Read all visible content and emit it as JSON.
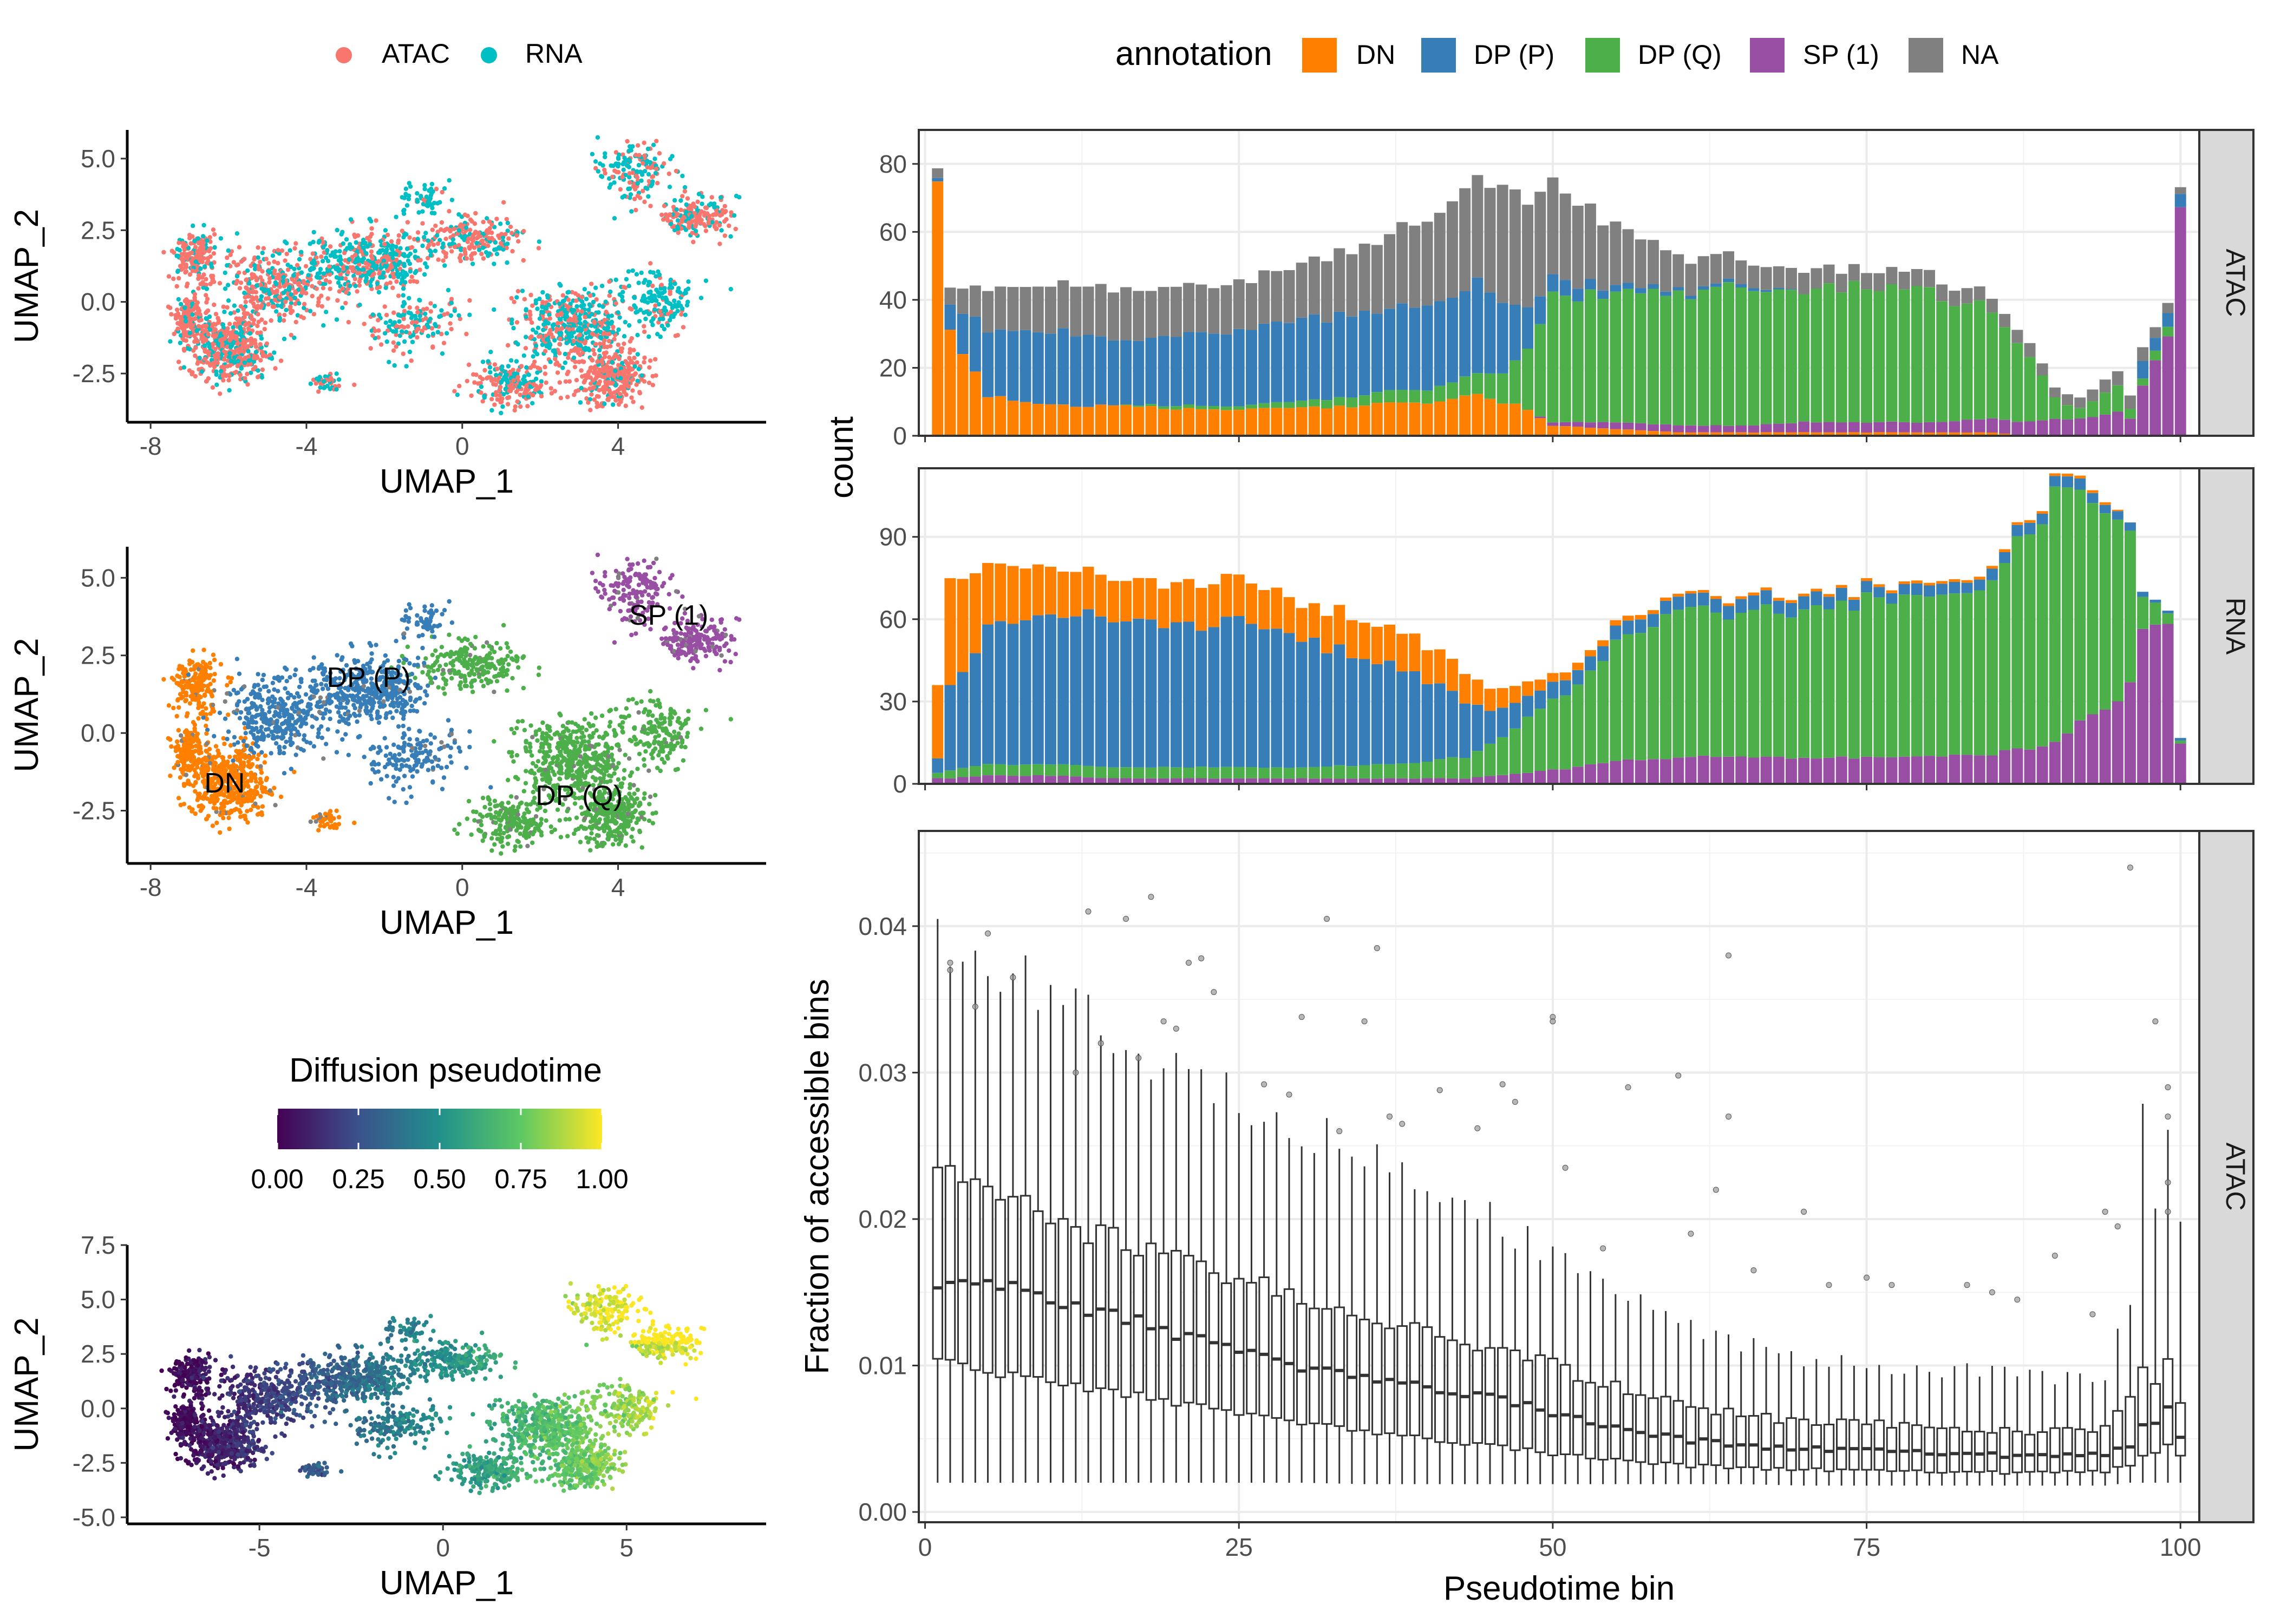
{
  "colors": {
    "atac": "#F8766D",
    "rna": "#00BFC4",
    "DN": "#FF7F00",
    "DP (P)": "#377EB8",
    "DP (Q)": "#4DAF4A",
    "SP (1)": "#984EA3",
    "NA": "#808080",
    "viridis": [
      "#440154",
      "#3B528B",
      "#21908C",
      "#5DC863",
      "#FDE725"
    ]
  },
  "legend_top_left": {
    "items": [
      "ATAC",
      "RNA"
    ]
  },
  "legend_top_right": {
    "title": "annotation",
    "items": [
      "DN",
      "DP (P)",
      "DP (Q)",
      "SP (1)",
      "NA"
    ]
  },
  "colorbar": {
    "title": "Diffusion pseudotime",
    "ticks": [
      "0.00",
      "0.25",
      "0.50",
      "0.75",
      "1.00"
    ]
  },
  "chart_data": [
    {
      "type": "scatter",
      "panel": "umap-modality",
      "xlabel": "UMAP_1",
      "ylabel": "UMAP_2",
      "xlim": [
        -8.6,
        7.8
      ],
      "ylim": [
        -4.2,
        6.0
      ],
      "xticks": [
        "-8",
        "-4",
        "0",
        "4"
      ],
      "xtick_values": [
        -8,
        -4,
        0,
        4
      ],
      "yticks": [
        "-2.5",
        "0.0",
        "2.5",
        "5.0"
      ],
      "ytick_values": [
        -2.5,
        0.0,
        2.5,
        5.0
      ],
      "color_by": "modality",
      "series": [
        "ATAC",
        "RNA"
      ]
    },
    {
      "type": "scatter",
      "panel": "umap-annotation",
      "xlabel": "UMAP_1",
      "ylabel": "UMAP_2",
      "xlim": [
        -8.6,
        7.8
      ],
      "ylim": [
        -4.2,
        6.0
      ],
      "xticks": [
        "-8",
        "-4",
        "0",
        "4"
      ],
      "xtick_values": [
        -8,
        -4,
        0,
        4
      ],
      "yticks": [
        "-2.5",
        "0.0",
        "2.5",
        "5.0"
      ],
      "ytick_values": [
        -2.5,
        0.0,
        2.5,
        5.0
      ],
      "color_by": "annotation",
      "cluster_labels": [
        {
          "text": "DN",
          "x": -6.1,
          "y": -1.6
        },
        {
          "text": "DP (P)",
          "x": -2.4,
          "y": 1.8
        },
        {
          "text": "DP (Q)",
          "x": 3.0,
          "y": -2.0
        },
        {
          "text": "SP (1)",
          "x": 5.3,
          "y": 3.8
        }
      ]
    },
    {
      "type": "scatter",
      "panel": "umap-pseudotime",
      "xlabel": "UMAP_1",
      "ylabel": "UMAP_2",
      "xlim": [
        -8.6,
        8.8
      ],
      "ylim": [
        -5.3,
        7.5
      ],
      "xticks": [
        "-5",
        "0",
        "5"
      ],
      "xtick_values": [
        -5,
        0,
        5
      ],
      "yticks": [
        "-5.0",
        "-2.5",
        "0.0",
        "2.5",
        "5.0",
        "7.5"
      ],
      "ytick_values": [
        -5.0,
        -2.5,
        0.0,
        2.5,
        5.0,
        7.5
      ],
      "color_by": "Diffusion pseudotime"
    },
    {
      "type": "bar",
      "panel": "count-atac",
      "facet": "ATAC",
      "ylabel": "count",
      "ylim": [
        0,
        90
      ],
      "yticks": [
        "0",
        "20",
        "40",
        "60",
        "80"
      ],
      "ytick_values": [
        0,
        20,
        40,
        60,
        80
      ],
      "stacked": true,
      "anchors": {
        "x": [
          1,
          2,
          5,
          10,
          15,
          20,
          25,
          30,
          35,
          40,
          42,
          44,
          46,
          48,
          50,
          55,
          60,
          65,
          70,
          75,
          80,
          85,
          88,
          90,
          92,
          95,
          96,
          97,
          98,
          99,
          100
        ],
        "NA": [
          3,
          5,
          12,
          14,
          15,
          14,
          14,
          16,
          20,
          25,
          28,
          32,
          33,
          32,
          28,
          18,
          10,
          7,
          6,
          5,
          5,
          4,
          4,
          3,
          3,
          4,
          4,
          4,
          3,
          3,
          2
        ],
        "DP (P)": [
          1,
          7,
          20,
          22,
          20,
          20,
          22,
          24,
          24,
          25,
          26,
          27,
          22,
          12,
          5,
          2,
          1,
          1,
          0,
          0,
          0,
          0,
          0,
          0,
          0,
          0,
          0,
          5,
          4,
          4,
          4
        ],
        "DP (Q)": [
          0,
          0,
          0,
          0,
          0,
          1,
          1,
          2,
          3,
          4,
          5,
          6,
          9,
          18,
          37,
          38,
          38,
          42,
          38,
          40,
          38,
          32,
          20,
          6,
          3,
          8,
          3,
          2,
          3,
          3,
          0
        ],
        "SP (1)": [
          0,
          0,
          0,
          0,
          0,
          0,
          0,
          0,
          0,
          0,
          0,
          0,
          0,
          0,
          1,
          2,
          2,
          2,
          3,
          3,
          3,
          4,
          4,
          5,
          5,
          7,
          5,
          15,
          22,
          30,
          70
        ],
        "DN": [
          75,
          30,
          12,
          9,
          9,
          8,
          8,
          8,
          9,
          10,
          11,
          12,
          10,
          8,
          3,
          2,
          1,
          1,
          1,
          1,
          1,
          1,
          0,
          0,
          0,
          0,
          0,
          0,
          0,
          0,
          0
        ]
      }
    },
    {
      "type": "bar",
      "panel": "count-rna",
      "facet": "RNA",
      "ylim": [
        0,
        115
      ],
      "yticks": [
        "0",
        "30",
        "60",
        "90"
      ],
      "ytick_values": [
        0,
        30,
        60,
        90
      ],
      "stacked": true,
      "anchors": {
        "x": [
          1,
          2,
          5,
          10,
          15,
          20,
          25,
          30,
          35,
          40,
          43,
          45,
          48,
          50,
          55,
          60,
          65,
          70,
          75,
          80,
          85,
          88,
          90,
          92,
          94,
          96,
          97,
          98,
          99,
          100
        ],
        "SP (1)": [
          2,
          2,
          3,
          3,
          2,
          2,
          2,
          2,
          2,
          2,
          2,
          3,
          4,
          5,
          8,
          10,
          10,
          9,
          10,
          10,
          11,
          13,
          16,
          22,
          28,
          35,
          55,
          58,
          56,
          15
        ],
        "DP (Q)": [
          2,
          3,
          4,
          4,
          4,
          4,
          4,
          4,
          5,
          6,
          8,
          12,
          20,
          25,
          42,
          52,
          52,
          55,
          57,
          58,
          64,
          78,
          88,
          82,
          70,
          55,
          12,
          8,
          4,
          1
        ],
        "DP (P)": [
          5,
          30,
          50,
          55,
          54,
          53,
          52,
          46,
          40,
          30,
          20,
          12,
          8,
          6,
          5,
          5,
          5,
          5,
          4,
          4,
          4,
          4,
          4,
          4,
          3,
          3,
          2,
          1,
          1,
          1
        ],
        "DN": [
          28,
          40,
          23,
          17,
          15,
          15,
          16,
          13,
          14,
          13,
          11,
          8,
          5,
          3,
          2,
          1,
          1,
          1,
          1,
          1,
          1,
          1,
          1,
          1,
          1,
          0,
          0,
          0,
          0,
          0
        ]
      }
    },
    {
      "type": "box",
      "panel": "fraction-accessible",
      "facet": "ATAC",
      "xlabel": "Pseudotime bin",
      "ylabel": "Fraction of accessible bins",
      "xlim": [
        -0.5,
        101.5
      ],
      "ylim": [
        -0.0007,
        0.0465
      ],
      "xticks": [
        "0",
        "25",
        "50",
        "75",
        "100"
      ],
      "xtick_values": [
        0,
        25,
        50,
        75,
        100
      ],
      "yticks": [
        "0.00",
        "0.01",
        "0.02",
        "0.03",
        "0.04"
      ],
      "ytick_values": [
        0.0,
        0.01,
        0.02,
        0.03,
        0.04
      ],
      "anchors": {
        "x": [
          1,
          5,
          10,
          15,
          20,
          25,
          30,
          35,
          40,
          45,
          50,
          55,
          60,
          65,
          70,
          75,
          80,
          85,
          90,
          94,
          96,
          97,
          98,
          99,
          100
        ],
        "median": [
          0.0158,
          0.0158,
          0.0145,
          0.0135,
          0.0122,
          0.0112,
          0.01,
          0.0092,
          0.0085,
          0.0078,
          0.0068,
          0.0058,
          0.005,
          0.0045,
          0.0043,
          0.0042,
          0.0041,
          0.0039,
          0.0038,
          0.004,
          0.0045,
          0.0062,
          0.006,
          0.007,
          0.0053
        ],
        "q1": [
          0.0108,
          0.0095,
          0.009,
          0.0082,
          0.0075,
          0.0068,
          0.0062,
          0.0055,
          0.005,
          0.0045,
          0.004,
          0.0036,
          0.0032,
          0.003,
          0.0029,
          0.0028,
          0.0028,
          0.0027,
          0.0027,
          0.0028,
          0.0032,
          0.004,
          0.004,
          0.0045,
          0.004
        ],
        "q3": [
          0.0228,
          0.0218,
          0.0205,
          0.0185,
          0.017,
          0.016,
          0.0145,
          0.0135,
          0.0125,
          0.0112,
          0.01,
          0.0085,
          0.0074,
          0.0066,
          0.0062,
          0.006,
          0.0058,
          0.0056,
          0.0055,
          0.0058,
          0.008,
          0.0095,
          0.009,
          0.01,
          0.0078
        ],
        "whisker_low": [
          0.002,
          0.002,
          0.002,
          0.002,
          0.002,
          0.002,
          0.002,
          0.0019,
          0.0019,
          0.0019,
          0.0019,
          0.0019,
          0.0019,
          0.0019,
          0.0018,
          0.0018,
          0.0018,
          0.0018,
          0.0018,
          0.0018,
          0.002,
          0.002,
          0.002,
          0.002,
          0.002
        ],
        "whisker_high": [
          0.0392,
          0.037,
          0.036,
          0.033,
          0.03,
          0.028,
          0.026,
          0.0245,
          0.022,
          0.02,
          0.0175,
          0.015,
          0.013,
          0.0115,
          0.0105,
          0.01,
          0.0098,
          0.0095,
          0.0092,
          0.0095,
          0.015,
          0.0275,
          0.022,
          0.025,
          0.019
        ]
      },
      "outliers": [
        [
          2,
          0.0375
        ],
        [
          2,
          0.037
        ],
        [
          4,
          0.0345
        ],
        [
          5,
          0.0395
        ],
        [
          7,
          0.0365
        ],
        [
          12,
          0.03
        ],
        [
          13,
          0.041
        ],
        [
          14,
          0.032
        ],
        [
          16,
          0.0405
        ],
        [
          17,
          0.031
        ],
        [
          18,
          0.042
        ],
        [
          19,
          0.0335
        ],
        [
          20,
          0.033
        ],
        [
          21,
          0.0375
        ],
        [
          22,
          0.0378
        ],
        [
          23,
          0.0355
        ],
        [
          27,
          0.0292
        ],
        [
          29,
          0.0285
        ],
        [
          30,
          0.0338
        ],
        [
          32,
          0.0405
        ],
        [
          33,
          0.026
        ],
        [
          35,
          0.0335
        ],
        [
          36,
          0.0385
        ],
        [
          37,
          0.027
        ],
        [
          38,
          0.0265
        ],
        [
          41,
          0.0288
        ],
        [
          44,
          0.0262
        ],
        [
          46,
          0.0292
        ],
        [
          47,
          0.028
        ],
        [
          50,
          0.0338
        ],
        [
          50,
          0.0335
        ],
        [
          51,
          0.0235
        ],
        [
          54,
          0.018
        ],
        [
          56,
          0.029
        ],
        [
          60,
          0.0298
        ],
        [
          61,
          0.019
        ],
        [
          63,
          0.022
        ],
        [
          64,
          0.038
        ],
        [
          64,
          0.027
        ],
        [
          66,
          0.0165
        ],
        [
          70,
          0.0205
        ],
        [
          72,
          0.0155
        ],
        [
          75,
          0.016
        ],
        [
          77,
          0.0155
        ],
        [
          83,
          0.0155
        ],
        [
          85,
          0.015
        ],
        [
          87,
          0.0145
        ],
        [
          90,
          0.0175
        ],
        [
          93,
          0.0135
        ],
        [
          94,
          0.0205
        ],
        [
          95,
          0.0195
        ],
        [
          96,
          0.044
        ],
        [
          98,
          0.0335
        ],
        [
          99,
          0.029
        ],
        [
          99,
          0.027
        ],
        [
          99,
          0.0225
        ],
        [
          99,
          0.0205
        ]
      ]
    }
  ]
}
